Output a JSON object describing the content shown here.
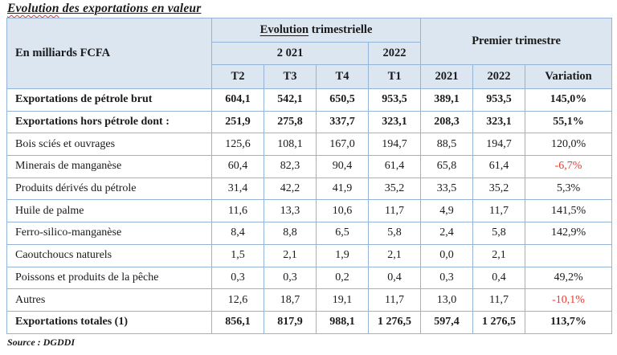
{
  "page": {
    "title_first_word": "Evolution",
    "title_rest": " des exportations en valeur",
    "source": "Source : DGDDI"
  },
  "table": {
    "header": {
      "unit_label": "En milliards FCFA",
      "group_quarterly_first_word": "Evolution",
      "group_quarterly_rest": " trimestrielle",
      "group_first_quarter": "Premier trimestre",
      "year_group_2021": "2 021",
      "year_group_2022": "2022",
      "quarter_cols": [
        "T2",
        "T3",
        "T4",
        "T1"
      ],
      "premier_cols": [
        "2021",
        "2022",
        "Variation"
      ]
    },
    "rows": [
      {
        "label": "Exportations de pétrole brut",
        "bold": true,
        "values": [
          "604,1",
          "542,1",
          "650,5",
          "953,5",
          "389,1",
          "953,5",
          "145,0%"
        ]
      },
      {
        "label": "Exportations hors pétrole dont :",
        "bold": true,
        "values": [
          "251,9",
          "275,8",
          "337,7",
          "323,1",
          "208,3",
          "323,1",
          "55,1%"
        ]
      },
      {
        "label": "Bois sciés et ouvrages",
        "bold": false,
        "values": [
          "125,6",
          "108,1",
          "167,0",
          "194,7",
          "88,5",
          "194,7",
          "120,0%"
        ]
      },
      {
        "label": "Minerais de manganèse",
        "bold": false,
        "values": [
          "60,4",
          "82,3",
          "90,4",
          "61,4",
          "65,8",
          "61,4",
          "-6,7%"
        ]
      },
      {
        "label": "Produits dérivés du pétrole",
        "bold": false,
        "values": [
          "31,4",
          "42,2",
          "41,9",
          "35,2",
          "33,5",
          "35,2",
          "5,3%"
        ]
      },
      {
        "label": "Huile de palme",
        "bold": false,
        "values": [
          "11,6",
          "13,3",
          "10,6",
          "11,7",
          "4,9",
          "11,7",
          "141,5%"
        ]
      },
      {
        "label": "Ferro-silico-manganèse",
        "bold": false,
        "values": [
          "8,4",
          "8,8",
          "6,5",
          "5,8",
          "2,4",
          "5,8",
          "142,9%"
        ]
      },
      {
        "label": "Caoutchoucs naturels",
        "bold": false,
        "values": [
          "1,5",
          "2,1",
          "1,9",
          "2,1",
          "0,0",
          "2,1",
          ""
        ]
      },
      {
        "label": "Poissons et produits de la pêche",
        "bold": false,
        "values": [
          "0,3",
          "0,3",
          "0,2",
          "0,4",
          "0,3",
          "0,4",
          "49,2%"
        ]
      },
      {
        "label": "Autres",
        "bold": false,
        "values": [
          "12,6",
          "18,7",
          "19,1",
          "11,7",
          "13,0",
          "11,7",
          "-10,1%"
        ]
      },
      {
        "label": "Exportations totales (1)",
        "bold": true,
        "values": [
          "856,1",
          "817,9",
          "988,1",
          "1 276,5",
          "597,4",
          "1 276,5",
          "113,7%"
        ]
      }
    ]
  },
  "colors": {
    "header_bg": "#dce6f1",
    "border": "#95b3d7",
    "negative": "#e8392e",
    "text": "#1a1a1a"
  }
}
